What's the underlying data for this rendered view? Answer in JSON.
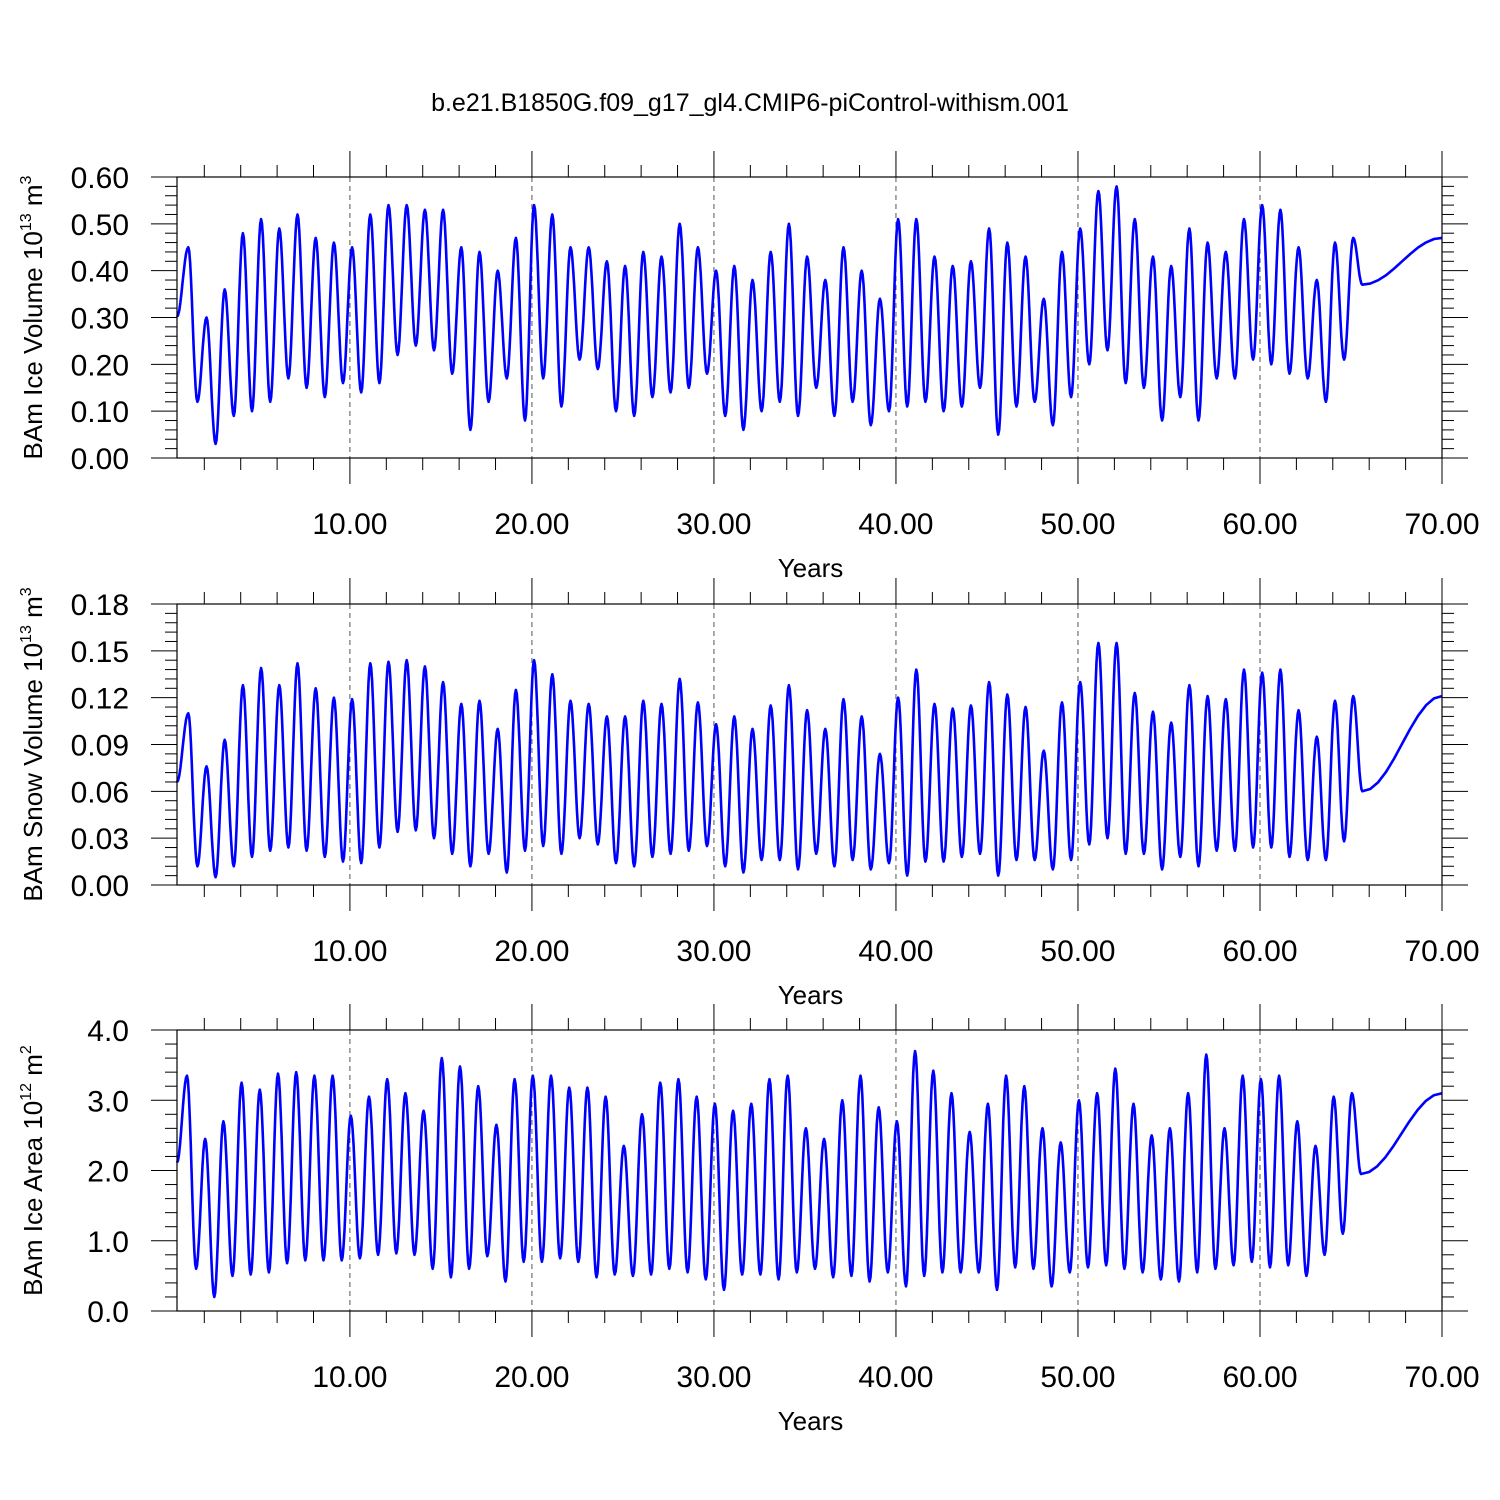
{
  "figure": {
    "title": "b.e21.B1850G.f09_g17_gl4.CMIP6-piControl-withism.001",
    "line_color": "#0000ff"
  },
  "chart_data": [
    {
      "type": "line",
      "xlabel": "Years",
      "ylabel": {
        "base": "BAm Ice Volume 10",
        "exponent": "13",
        "unit": " m",
        "unit_exponent": "3"
      },
      "xlim": [
        0.5,
        70.0
      ],
      "ylim": [
        0.0,
        0.6
      ],
      "xticks": [
        "10.00",
        "20.00",
        "30.00",
        "40.00",
        "50.00",
        "60.00",
        "70.00"
      ],
      "xtick_values": [
        10,
        20,
        30,
        40,
        50,
        60,
        70
      ],
      "yticks": [
        "0.00",
        "0.10",
        "0.20",
        "0.30",
        "0.40",
        "0.50",
        "0.60"
      ],
      "ytick_values": [
        0.0,
        0.1,
        0.2,
        0.3,
        0.4,
        0.5,
        0.6
      ],
      "grid": "vertical dashed at major x ticks",
      "series": [
        {
          "phase": 0.62,
          "peaks": [
            0.45,
            0.3,
            0.36,
            0.48,
            0.51,
            0.49,
            0.52,
            0.47,
            0.46,
            0.45,
            0.52,
            0.54,
            0.54,
            0.53,
            0.53,
            0.45,
            0.44,
            0.4,
            0.47,
            0.54,
            0.52,
            0.45,
            0.45,
            0.42,
            0.41,
            0.44,
            0.43,
            0.5,
            0.45,
            0.4,
            0.41,
            0.38,
            0.44,
            0.5,
            0.43,
            0.38,
            0.45,
            0.4,
            0.34,
            0.51,
            0.51,
            0.43,
            0.41,
            0.42,
            0.49,
            0.46,
            0.43,
            0.34,
            0.44,
            0.49,
            0.57,
            0.58,
            0.51,
            0.43,
            0.41,
            0.49,
            0.46,
            0.44,
            0.51,
            0.54,
            0.53,
            0.45,
            0.38,
            0.46,
            0.47
          ],
          "troughs": [
            0.12,
            0.03,
            0.09,
            0.1,
            0.12,
            0.17,
            0.15,
            0.13,
            0.16,
            0.14,
            0.16,
            0.22,
            0.24,
            0.23,
            0.18,
            0.06,
            0.12,
            0.17,
            0.08,
            0.17,
            0.11,
            0.21,
            0.19,
            0.1,
            0.09,
            0.13,
            0.14,
            0.15,
            0.18,
            0.09,
            0.06,
            0.1,
            0.12,
            0.09,
            0.15,
            0.09,
            0.12,
            0.07,
            0.1,
            0.11,
            0.12,
            0.1,
            0.11,
            0.15,
            0.05,
            0.11,
            0.12,
            0.07,
            0.13,
            0.2,
            0.23,
            0.16,
            0.15,
            0.08,
            0.13,
            0.08,
            0.17,
            0.17,
            0.21,
            0.2,
            0.18,
            0.17,
            0.12,
            0.21,
            0.37
          ]
        }
      ]
    },
    {
      "type": "line",
      "xlabel": "Years",
      "ylabel": {
        "base": "BAm Snow Volume 10",
        "exponent": "13",
        "unit": " m",
        "unit_exponent": "3"
      },
      "xlim": [
        0.5,
        70.0
      ],
      "ylim": [
        0.0,
        0.18
      ],
      "xticks": [
        "10.00",
        "20.00",
        "30.00",
        "40.00",
        "50.00",
        "60.00",
        "70.00"
      ],
      "xtick_values": [
        10,
        20,
        30,
        40,
        50,
        60,
        70
      ],
      "yticks": [
        "0.00",
        "0.03",
        "0.06",
        "0.09",
        "0.12",
        "0.15",
        "0.18"
      ],
      "ytick_values": [
        0.0,
        0.03,
        0.06,
        0.09,
        0.12,
        0.15,
        0.18
      ],
      "grid": "vertical dashed at major x ticks",
      "series": [
        {
          "phase": 0.62,
          "peaks": [
            0.11,
            0.076,
            0.093,
            0.128,
            0.139,
            0.128,
            0.142,
            0.126,
            0.12,
            0.119,
            0.142,
            0.143,
            0.144,
            0.14,
            0.13,
            0.116,
            0.118,
            0.1,
            0.125,
            0.144,
            0.135,
            0.118,
            0.116,
            0.108,
            0.108,
            0.118,
            0.116,
            0.132,
            0.117,
            0.103,
            0.108,
            0.1,
            0.115,
            0.128,
            0.112,
            0.1,
            0.119,
            0.108,
            0.084,
            0.12,
            0.138,
            0.116,
            0.113,
            0.115,
            0.13,
            0.122,
            0.114,
            0.086,
            0.117,
            0.13,
            0.155,
            0.155,
            0.123,
            0.111,
            0.104,
            0.128,
            0.121,
            0.119,
            0.138,
            0.136,
            0.138,
            0.112,
            0.095,
            0.118,
            0.121
          ],
          "troughs": [
            0.012,
            0.005,
            0.012,
            0.018,
            0.022,
            0.024,
            0.022,
            0.018,
            0.015,
            0.014,
            0.024,
            0.034,
            0.035,
            0.03,
            0.02,
            0.012,
            0.02,
            0.008,
            0.022,
            0.025,
            0.02,
            0.03,
            0.026,
            0.014,
            0.012,
            0.018,
            0.02,
            0.022,
            0.025,
            0.012,
            0.008,
            0.016,
            0.016,
            0.01,
            0.02,
            0.012,
            0.016,
            0.01,
            0.014,
            0.006,
            0.015,
            0.015,
            0.018,
            0.02,
            0.006,
            0.016,
            0.016,
            0.01,
            0.016,
            0.026,
            0.03,
            0.02,
            0.02,
            0.01,
            0.018,
            0.012,
            0.022,
            0.022,
            0.024,
            0.024,
            0.018,
            0.016,
            0.016,
            0.028,
            0.06
          ]
        }
      ]
    },
    {
      "type": "line",
      "xlabel": "Years",
      "ylabel": {
        "base": "BAm Ice Area 10",
        "exponent": "12",
        "unit": " m",
        "unit_exponent": "2"
      },
      "xlim": [
        0.5,
        70.0
      ],
      "ylim": [
        0.0,
        4.0
      ],
      "xticks": [
        "10.00",
        "20.00",
        "30.00",
        "40.00",
        "50.00",
        "60.00",
        "70.00"
      ],
      "xtick_values": [
        10,
        20,
        30,
        40,
        50,
        60,
        70
      ],
      "yticks": [
        "0.0",
        "1.0",
        "2.0",
        "3.0",
        "4.0"
      ],
      "ytick_values": [
        0.0,
        1.0,
        2.0,
        3.0,
        4.0
      ],
      "grid": "vertical dashed at major x ticks",
      "series": [
        {
          "phase": 0.55,
          "peaks": [
            3.35,
            2.45,
            2.7,
            3.25,
            3.15,
            3.38,
            3.4,
            3.35,
            3.35,
            2.78,
            3.05,
            3.3,
            3.1,
            2.85,
            3.6,
            3.48,
            3.2,
            2.65,
            3.3,
            3.35,
            3.35,
            3.18,
            3.18,
            3.05,
            2.35,
            2.8,
            3.25,
            3.3,
            3.05,
            2.95,
            2.85,
            2.95,
            3.3,
            3.35,
            2.6,
            2.45,
            3.0,
            3.35,
            2.9,
            2.7,
            3.7,
            3.42,
            3.1,
            2.55,
            2.95,
            3.35,
            3.2,
            2.6,
            2.4,
            3.0,
            3.1,
            3.45,
            2.95,
            2.5,
            2.6,
            3.1,
            3.65,
            2.6,
            3.35,
            3.3,
            3.35,
            2.7,
            2.35,
            3.05,
            3.1
          ],
          "troughs": [
            0.6,
            0.2,
            0.5,
            0.52,
            0.55,
            0.68,
            0.72,
            0.72,
            0.72,
            0.75,
            0.8,
            0.82,
            0.8,
            0.6,
            0.48,
            0.6,
            0.78,
            0.42,
            0.7,
            0.7,
            0.75,
            0.7,
            0.48,
            0.52,
            0.5,
            0.52,
            0.6,
            0.55,
            0.45,
            0.3,
            0.52,
            0.52,
            0.45,
            0.55,
            0.6,
            0.48,
            0.5,
            0.42,
            0.55,
            0.35,
            0.5,
            0.55,
            0.55,
            0.55,
            0.3,
            0.62,
            0.6,
            0.35,
            0.55,
            0.62,
            0.65,
            0.6,
            0.55,
            0.45,
            0.42,
            0.55,
            0.6,
            0.65,
            0.7,
            0.62,
            0.65,
            0.5,
            0.8,
            1.1,
            1.95
          ]
        }
      ]
    }
  ]
}
